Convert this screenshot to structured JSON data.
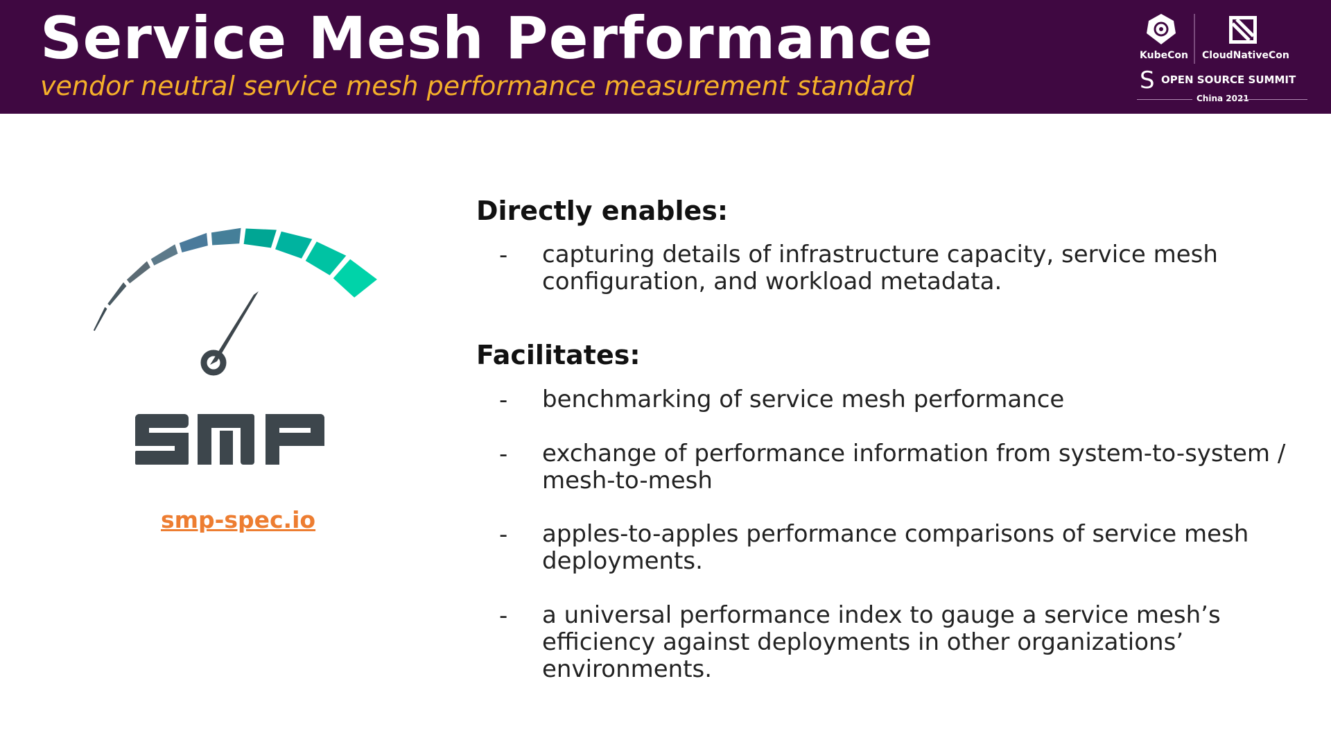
{
  "header": {
    "title": "Service Mesh Performance",
    "subtitle": "vendor neutral service mesh performance measurement standard",
    "background": "#3f0841",
    "subtitle_color": "#f5b02a",
    "logos": {
      "kubecon": "KubeCon",
      "cloudnativecon": "CloudNativeCon",
      "oss": "OPEN SOURCE SUMMIT",
      "edition": "China 2021"
    }
  },
  "left": {
    "logo_text": "SMP",
    "link": "smp-spec.io",
    "link_color": "#ed7d31",
    "gauge_colors": [
      "#3c4a52",
      "#4a5a62",
      "#5b6b74",
      "#5d7a8a",
      "#4a7a9b",
      "#457f99",
      "#00a694",
      "#00b39f",
      "#00c3a3",
      "#00d3a9"
    ]
  },
  "main": {
    "directly_heading": "Directly enables:",
    "directly_items": [
      "capturing details of infrastructure capacity, service mesh configuration, and workload metadata."
    ],
    "facilitates_heading": "Facilitates:",
    "facilitates_items": [
      "benchmarking of service mesh performance",
      "exchange of performance information from system-to-system / mesh-to-mesh",
      "apples-to-apples performance comparisons of service mesh deployments.",
      "a universal performance index to gauge a service mesh’s efficiency against deployments in other organizations’ environments."
    ],
    "dash": "-"
  }
}
